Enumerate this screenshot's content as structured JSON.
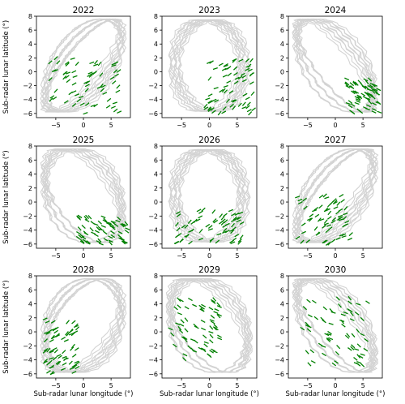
{
  "figure": {
    "xlabel": "Sub-radar lunar longitude (°)",
    "ylabel": "Sub-radar lunar latitude (°)",
    "colors": {
      "track": "#d3d3d3",
      "observed": "#008000",
      "axes": "#000000"
    }
  },
  "chart_data": [
    {
      "type": "line",
      "title": "2022",
      "xlim": [
        -8.5,
        8.5
      ],
      "ylim": [
        -6.6,
        8.0
      ],
      "xticks": [
        -5,
        0,
        5
      ],
      "yticks": [
        -6,
        -4,
        -2,
        0,
        2,
        4,
        6,
        8
      ],
      "shape": "diag_up",
      "green_region": {
        "x": [
          -6,
          7
        ],
        "y": [
          -6,
          2
        ]
      }
    },
    {
      "type": "line",
      "title": "2023",
      "xlim": [
        -8.5,
        8.5
      ],
      "ylim": [
        -6.6,
        8.0
      ],
      "xticks": [
        -5,
        0,
        5
      ],
      "yticks": [
        -6,
        -4,
        -2,
        0,
        2,
        4,
        6,
        8
      ],
      "shape": "oval",
      "green_region": {
        "x": [
          -1,
          8
        ],
        "y": [
          -6,
          2
        ]
      }
    },
    {
      "type": "line",
      "title": "2024",
      "xlim": [
        -8.5,
        8.5
      ],
      "ylim": [
        -6.6,
        8.0
      ],
      "xticks": [
        -5,
        0,
        5
      ],
      "yticks": [
        -6,
        -4,
        -2,
        0,
        2,
        4,
        6,
        8
      ],
      "shape": "diag_down",
      "green_region": {
        "x": [
          2,
          8
        ],
        "y": [
          -6,
          -1
        ]
      }
    },
    {
      "type": "line",
      "title": "2025",
      "xlim": [
        -8.5,
        8.5
      ],
      "ylim": [
        -6.6,
        8.0
      ],
      "xticks": [
        -5,
        0,
        5
      ],
      "yticks": [
        -6,
        -4,
        -2,
        0,
        2,
        4,
        6,
        8
      ],
      "shape": "diag_down_wide",
      "green_region": {
        "x": [
          -1,
          8
        ],
        "y": [
          -6,
          -2
        ]
      }
    },
    {
      "type": "line",
      "title": "2026",
      "xlim": [
        -8.5,
        8.5
      ],
      "ylim": [
        -6.6,
        8.0
      ],
      "xticks": [
        -5,
        0,
        5
      ],
      "yticks": [
        -6,
        -4,
        -2,
        0,
        2,
        4,
        6,
        8
      ],
      "shape": "oval",
      "green_region": {
        "x": [
          -6,
          6
        ],
        "y": [
          -6,
          -1
        ]
      }
    },
    {
      "type": "line",
      "title": "2027",
      "xlim": [
        -8.5,
        8.5
      ],
      "ylim": [
        -6.6,
        8.0
      ],
      "xticks": [
        -5,
        0,
        5
      ],
      "yticks": [
        -6,
        -4,
        -2,
        0,
        2,
        4,
        6,
        8
      ],
      "shape": "diag_up",
      "green_region": {
        "x": [
          -7,
          3
        ],
        "y": [
          -6,
          1
        ]
      }
    },
    {
      "type": "line",
      "title": "2028",
      "xlim": [
        -8.5,
        8.5
      ],
      "ylim": [
        -6.6,
        8.0
      ],
      "xticks": [
        -5,
        0,
        5
      ],
      "yticks": [
        -6,
        -4,
        -2,
        0,
        2,
        4,
        6,
        8
      ],
      "shape": "diag_up_wide",
      "green_region": {
        "x": [
          -7,
          -1
        ],
        "y": [
          -6,
          2
        ]
      }
    },
    {
      "type": "line",
      "title": "2029",
      "xlim": [
        -8.5,
        8.5
      ],
      "ylim": [
        -6.6,
        8.0
      ],
      "xticks": [
        -5,
        0,
        5
      ],
      "yticks": [
        -6,
        -4,
        -2,
        0,
        2,
        4,
        6,
        8
      ],
      "shape": "diag_down_wide",
      "green_region": {
        "x": [
          -7,
          2
        ],
        "y": [
          -4,
          5
        ]
      }
    },
    {
      "type": "line",
      "title": "2030",
      "xlim": [
        -8.5,
        8.5
      ],
      "ylim": [
        -6.6,
        8.0
      ],
      "xticks": [
        -5,
        0,
        5
      ],
      "yticks": [
        -6,
        -4,
        -2,
        0,
        2,
        4,
        6,
        8
      ],
      "shape": "diag_down",
      "green_region": {
        "x": [
          -6,
          6
        ],
        "y": [
          -5,
          5
        ]
      }
    }
  ]
}
